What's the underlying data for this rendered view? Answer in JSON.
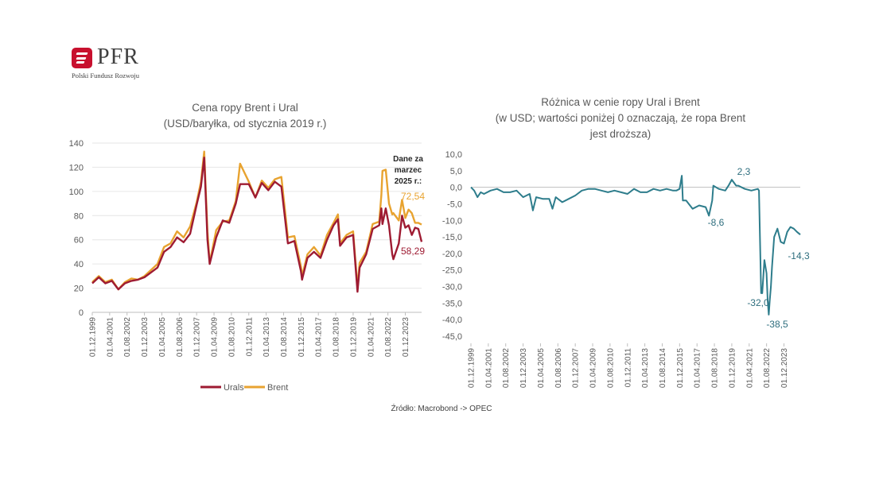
{
  "logo": {
    "name": "PFR",
    "subtitle": "Polski Fundusz Rozwoju"
  },
  "source": "Źródło: Macrobond -> OPEC",
  "chart_data": [
    {
      "type": "line",
      "title": "Cena ropy Brent i Ural",
      "subtitle": "(USD/baryłka, od stycznia 2019 r.)",
      "ylim": [
        0,
        140
      ],
      "yticks": [
        0,
        20,
        40,
        60,
        80,
        100,
        120,
        140
      ],
      "x_tick_labels": [
        "01.12.1999",
        "01.04.2001",
        "01.08.2002",
        "01.12.2003",
        "01.04.2005",
        "01.08.2006",
        "01.12.2007",
        "01.04.2009",
        "01.08.2010",
        "01.12.2011",
        "01.04.2013",
        "01.08.2014",
        "01.12.2015",
        "01.04.2017",
        "01.08.2018",
        "01.12.2019",
        "01.04.2021",
        "01.08.2022",
        "01.12.2023"
      ],
      "grid": true,
      "legend": "bottom",
      "annotation": [
        "Dane za",
        "marzec",
        "2025 r.:"
      ],
      "end_labels": {
        "Brent": "72,54",
        "Urals": "58,29"
      },
      "series": [
        {
          "name": "Urals",
          "color": "#9e1b32",
          "x": [
            "1999-12",
            "2000-06",
            "2000-12",
            "2001-06",
            "2001-12",
            "2002-06",
            "2002-12",
            "2003-06",
            "2003-12",
            "2004-06",
            "2004-12",
            "2005-06",
            "2005-12",
            "2006-06",
            "2006-12",
            "2007-06",
            "2007-12",
            "2008-04",
            "2008-07",
            "2008-10",
            "2008-12",
            "2009-06",
            "2009-12",
            "2010-06",
            "2010-12",
            "2011-04",
            "2011-12",
            "2012-06",
            "2012-12",
            "2013-06",
            "2013-12",
            "2014-06",
            "2014-12",
            "2015-06",
            "2015-12",
            "2016-01",
            "2016-06",
            "2016-12",
            "2017-06",
            "2017-12",
            "2018-06",
            "2018-10",
            "2018-12",
            "2019-06",
            "2019-12",
            "2020-04",
            "2020-06",
            "2020-12",
            "2021-06",
            "2021-12",
            "2022-02",
            "2022-03",
            "2022-06",
            "2022-09",
            "2022-12",
            "2023-01",
            "2023-06",
            "2023-09",
            "2023-12",
            "2024-03",
            "2024-06",
            "2024-09",
            "2024-12",
            "2025-03"
          ],
          "values": [
            24,
            29,
            24,
            26,
            19,
            24,
            26,
            27,
            29,
            33,
            37,
            50,
            54,
            62,
            58,
            65,
            89,
            104,
            128,
            60,
            40,
            62,
            76,
            74,
            90,
            106,
            106,
            95,
            107,
            101,
            108,
            104,
            57,
            59,
            34,
            27,
            45,
            50,
            45,
            60,
            72,
            77,
            55,
            62,
            64,
            17,
            37,
            48,
            69,
            72,
            86,
            73,
            86,
            72,
            48,
            44,
            57,
            80,
            70,
            72,
            64,
            70,
            69,
            58.29
          ]
        },
        {
          "name": "Brent",
          "color": "#e8a330",
          "x": [
            "1999-12",
            "2000-06",
            "2000-12",
            "2001-06",
            "2001-12",
            "2002-06",
            "2002-12",
            "2003-06",
            "2003-12",
            "2004-06",
            "2004-12",
            "2005-06",
            "2005-12",
            "2006-06",
            "2006-12",
            "2007-06",
            "2007-12",
            "2008-04",
            "2008-07",
            "2008-10",
            "2008-12",
            "2009-06",
            "2009-12",
            "2010-06",
            "2010-12",
            "2011-04",
            "2011-12",
            "2012-06",
            "2012-12",
            "2013-06",
            "2013-12",
            "2014-06",
            "2014-12",
            "2015-06",
            "2015-12",
            "2016-01",
            "2016-06",
            "2016-12",
            "2017-06",
            "2017-12",
            "2018-06",
            "2018-10",
            "2018-12",
            "2019-06",
            "2019-12",
            "2020-04",
            "2020-06",
            "2020-12",
            "2021-06",
            "2021-12",
            "2022-02",
            "2022-03",
            "2022-06",
            "2022-09",
            "2022-12",
            "2023-01",
            "2023-06",
            "2023-09",
            "2023-12",
            "2024-03",
            "2024-06",
            "2024-09",
            "2024-12",
            "2025-03"
          ],
          "values": [
            25,
            30,
            25,
            27,
            19,
            25,
            28,
            27,
            30,
            35,
            40,
            54,
            57,
            67,
            62,
            71,
            91,
            108,
            133,
            67,
            41,
            68,
            75,
            76,
            92,
            123,
            108,
            95,
            109,
            103,
            110,
            112,
            62,
            63,
            38,
            30,
            48,
            54,
            47,
            64,
            74,
            81,
            57,
            64,
            67,
            21,
            41,
            50,
            73,
            75,
            97,
            117,
            118,
            90,
            81,
            82,
            76,
            93,
            78,
            85,
            82,
            74,
            74,
            72.54
          ]
        }
      ]
    },
    {
      "type": "line",
      "title": "Różnica w cenie ropy Ural i Brent",
      "subtitle": [
        "(w USD; wartości poniżej 0 oznaczają, że ropa Brent",
        "jest droższa)"
      ],
      "ylim": [
        -45,
        10
      ],
      "ytick_labels": [
        "10,0",
        "5,0",
        "0,0",
        "-5,0",
        "-10,0",
        "-15,0",
        "-20,0",
        "-25,0",
        "-30,0",
        "-35,0",
        "-40,0",
        "-45,0"
      ],
      "yticks": [
        10,
        5,
        0,
        -5,
        -10,
        -15,
        -20,
        -25,
        -30,
        -35,
        -40,
        -45
      ],
      "x_tick_labels": [
        "01.12.1999",
        "01.04.2001",
        "01.08.2002",
        "01.12.2003",
        "01.04.2005",
        "01.08.2006",
        "01.12.2007",
        "01.04.2009",
        "01.08.2010",
        "01.12.2011",
        "01.04.2013",
        "01.08.2014",
        "01.12.2015",
        "01.04.2017",
        "01.08.2018",
        "01.12.2019",
        "01.04.2021",
        "01.08.2022",
        "01.12.2023"
      ],
      "grid": false,
      "point_labels": [
        "2,3",
        "-8,6",
        "-32,0",
        "-38,5",
        "-14,3"
      ],
      "series": [
        {
          "name": "",
          "color": "#2e7d8c",
          "x": [
            "1999-12",
            "2000-03",
            "2000-06",
            "2000-09",
            "2000-12",
            "2001-06",
            "2001-12",
            "2002-06",
            "2002-12",
            "2003-06",
            "2003-12",
            "2004-06",
            "2004-09",
            "2004-12",
            "2005-06",
            "2005-12",
            "2006-03",
            "2006-06",
            "2006-12",
            "2007-06",
            "2007-12",
            "2008-06",
            "2008-12",
            "2009-06",
            "2009-12",
            "2010-06",
            "2010-12",
            "2011-06",
            "2011-12",
            "2012-06",
            "2012-12",
            "2013-06",
            "2013-12",
            "2014-06",
            "2014-12",
            "2015-06",
            "2015-09",
            "2015-12",
            "2016-02",
            "2016-03",
            "2016-06",
            "2016-12",
            "2017-06",
            "2017-12",
            "2018-03",
            "2018-06",
            "2018-07",
            "2018-12",
            "2019-06",
            "2019-09",
            "2019-12",
            "2020-04",
            "2020-06",
            "2020-12",
            "2021-06",
            "2021-12",
            "2022-01",
            "2022-03",
            "2022-04",
            "2022-06",
            "2022-08",
            "2022-09",
            "2022-10",
            "2022-11",
            "2022-12",
            "2023-01",
            "2023-03",
            "2023-06",
            "2023-09",
            "2023-12",
            "2024-03",
            "2024-06",
            "2024-09",
            "2024-12",
            "2025-03"
          ],
          "values": [
            0,
            -1,
            -3,
            -1.5,
            -2,
            -1,
            -0.5,
            -1.5,
            -1.5,
            -1,
            -3,
            -2,
            -7,
            -3,
            -3.5,
            -3.5,
            -6.5,
            -3,
            -4.5,
            -3.5,
            -2.5,
            -1,
            -0.5,
            -0.5,
            -1,
            -1.5,
            -1,
            -1.5,
            -2,
            -0.5,
            -1.5,
            -1.5,
            -0.5,
            -1,
            -0.5,
            -1,
            -1,
            -0.5,
            3.5,
            -4,
            -4,
            -6.5,
            -5.5,
            -6,
            -8.6,
            -4,
            0.5,
            -0.5,
            -1,
            0.5,
            2.3,
            0.5,
            0.5,
            -0.5,
            -1,
            -0.5,
            -1,
            -32,
            -32,
            -22,
            -26,
            -34,
            -38.5,
            -34,
            -30,
            -24,
            -15,
            -12.5,
            -16.5,
            -17,
            -13.5,
            -12,
            -12.5,
            -13.5,
            -14.3
          ]
        }
      ]
    }
  ]
}
